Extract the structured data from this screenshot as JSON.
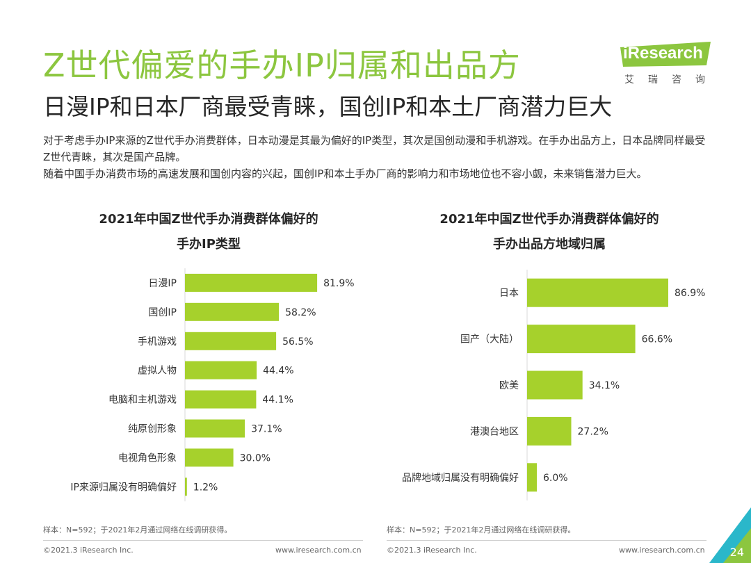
{
  "header": {
    "title": "Z世代偏爱的手办IP归属和出品方",
    "subtitle": "日漫IP和日本厂商最受青睐，国创IP和本土厂商潜力巨大"
  },
  "logo": {
    "text": "iResearch",
    "cn": "艾瑞咨询"
  },
  "body": {
    "p1": "对于考虑手办IP来源的Z世代手办消费群体，日本动漫是其最为偏好的IP类型，其次是国创动漫和手机游戏。在手办出品方上，日本品牌同样最受Z世代青睐，其次是国产品牌。",
    "p2": "随着中国手办消费市场的高速发展和国创内容的兴起，国创IP和本土手办厂商的影响力和市场地位也不容小觑，未来销售潜力巨大。"
  },
  "colors": {
    "accent": "#8cc63f",
    "bar": "#a6d12c"
  },
  "chart_data": [
    {
      "type": "bar",
      "orientation": "horizontal",
      "title": "2021年中国Z世代手办消费群体偏好的",
      "title_line2": "手办IP类型",
      "categories": [
        "日漫IP",
        "国创IP",
        "手机游戏",
        "虚拟人物",
        "电脑和主机游戏",
        "纯原创形象",
        "电视角色形象",
        "IP来源归属没有明确偏好"
      ],
      "values": [
        81.9,
        58.2,
        56.5,
        44.4,
        44.1,
        37.1,
        30.0,
        1.2
      ],
      "labels": [
        "81.9%",
        "58.2%",
        "56.5%",
        "44.4%",
        "44.1%",
        "37.1%",
        "30.0%",
        "1.2%"
      ],
      "unit": "%",
      "xlim": [
        0,
        100
      ]
    },
    {
      "type": "bar",
      "orientation": "horizontal",
      "title": "2021年中国Z世代手办消费群体偏好的",
      "title_line2": "手办出品方地域归属",
      "categories": [
        "日本",
        "国产（大陆）",
        "欧美",
        "港澳台地区",
        "品牌地域归属没有明确偏好"
      ],
      "values": [
        86.9,
        66.6,
        34.1,
        27.2,
        6.0
      ],
      "labels": [
        "86.9%",
        "66.6%",
        "34.1%",
        "27.2%",
        "6.0%"
      ],
      "unit": "%",
      "xlim": [
        0,
        100
      ]
    }
  ],
  "notes": {
    "left": "样本：N=592；于2021年2月通过网络在线调研获得。",
    "right": "样本：N=592；于2021年2月通过网络在线调研获得。"
  },
  "footer": {
    "copyright_left": "©2021.3 iResearch Inc.",
    "url_left": "www.iresearch.com.cn",
    "copyright_right": "©2021.3 iResearch Inc.",
    "url_right": "www.iresearch.com.cn",
    "page_number": "24"
  }
}
